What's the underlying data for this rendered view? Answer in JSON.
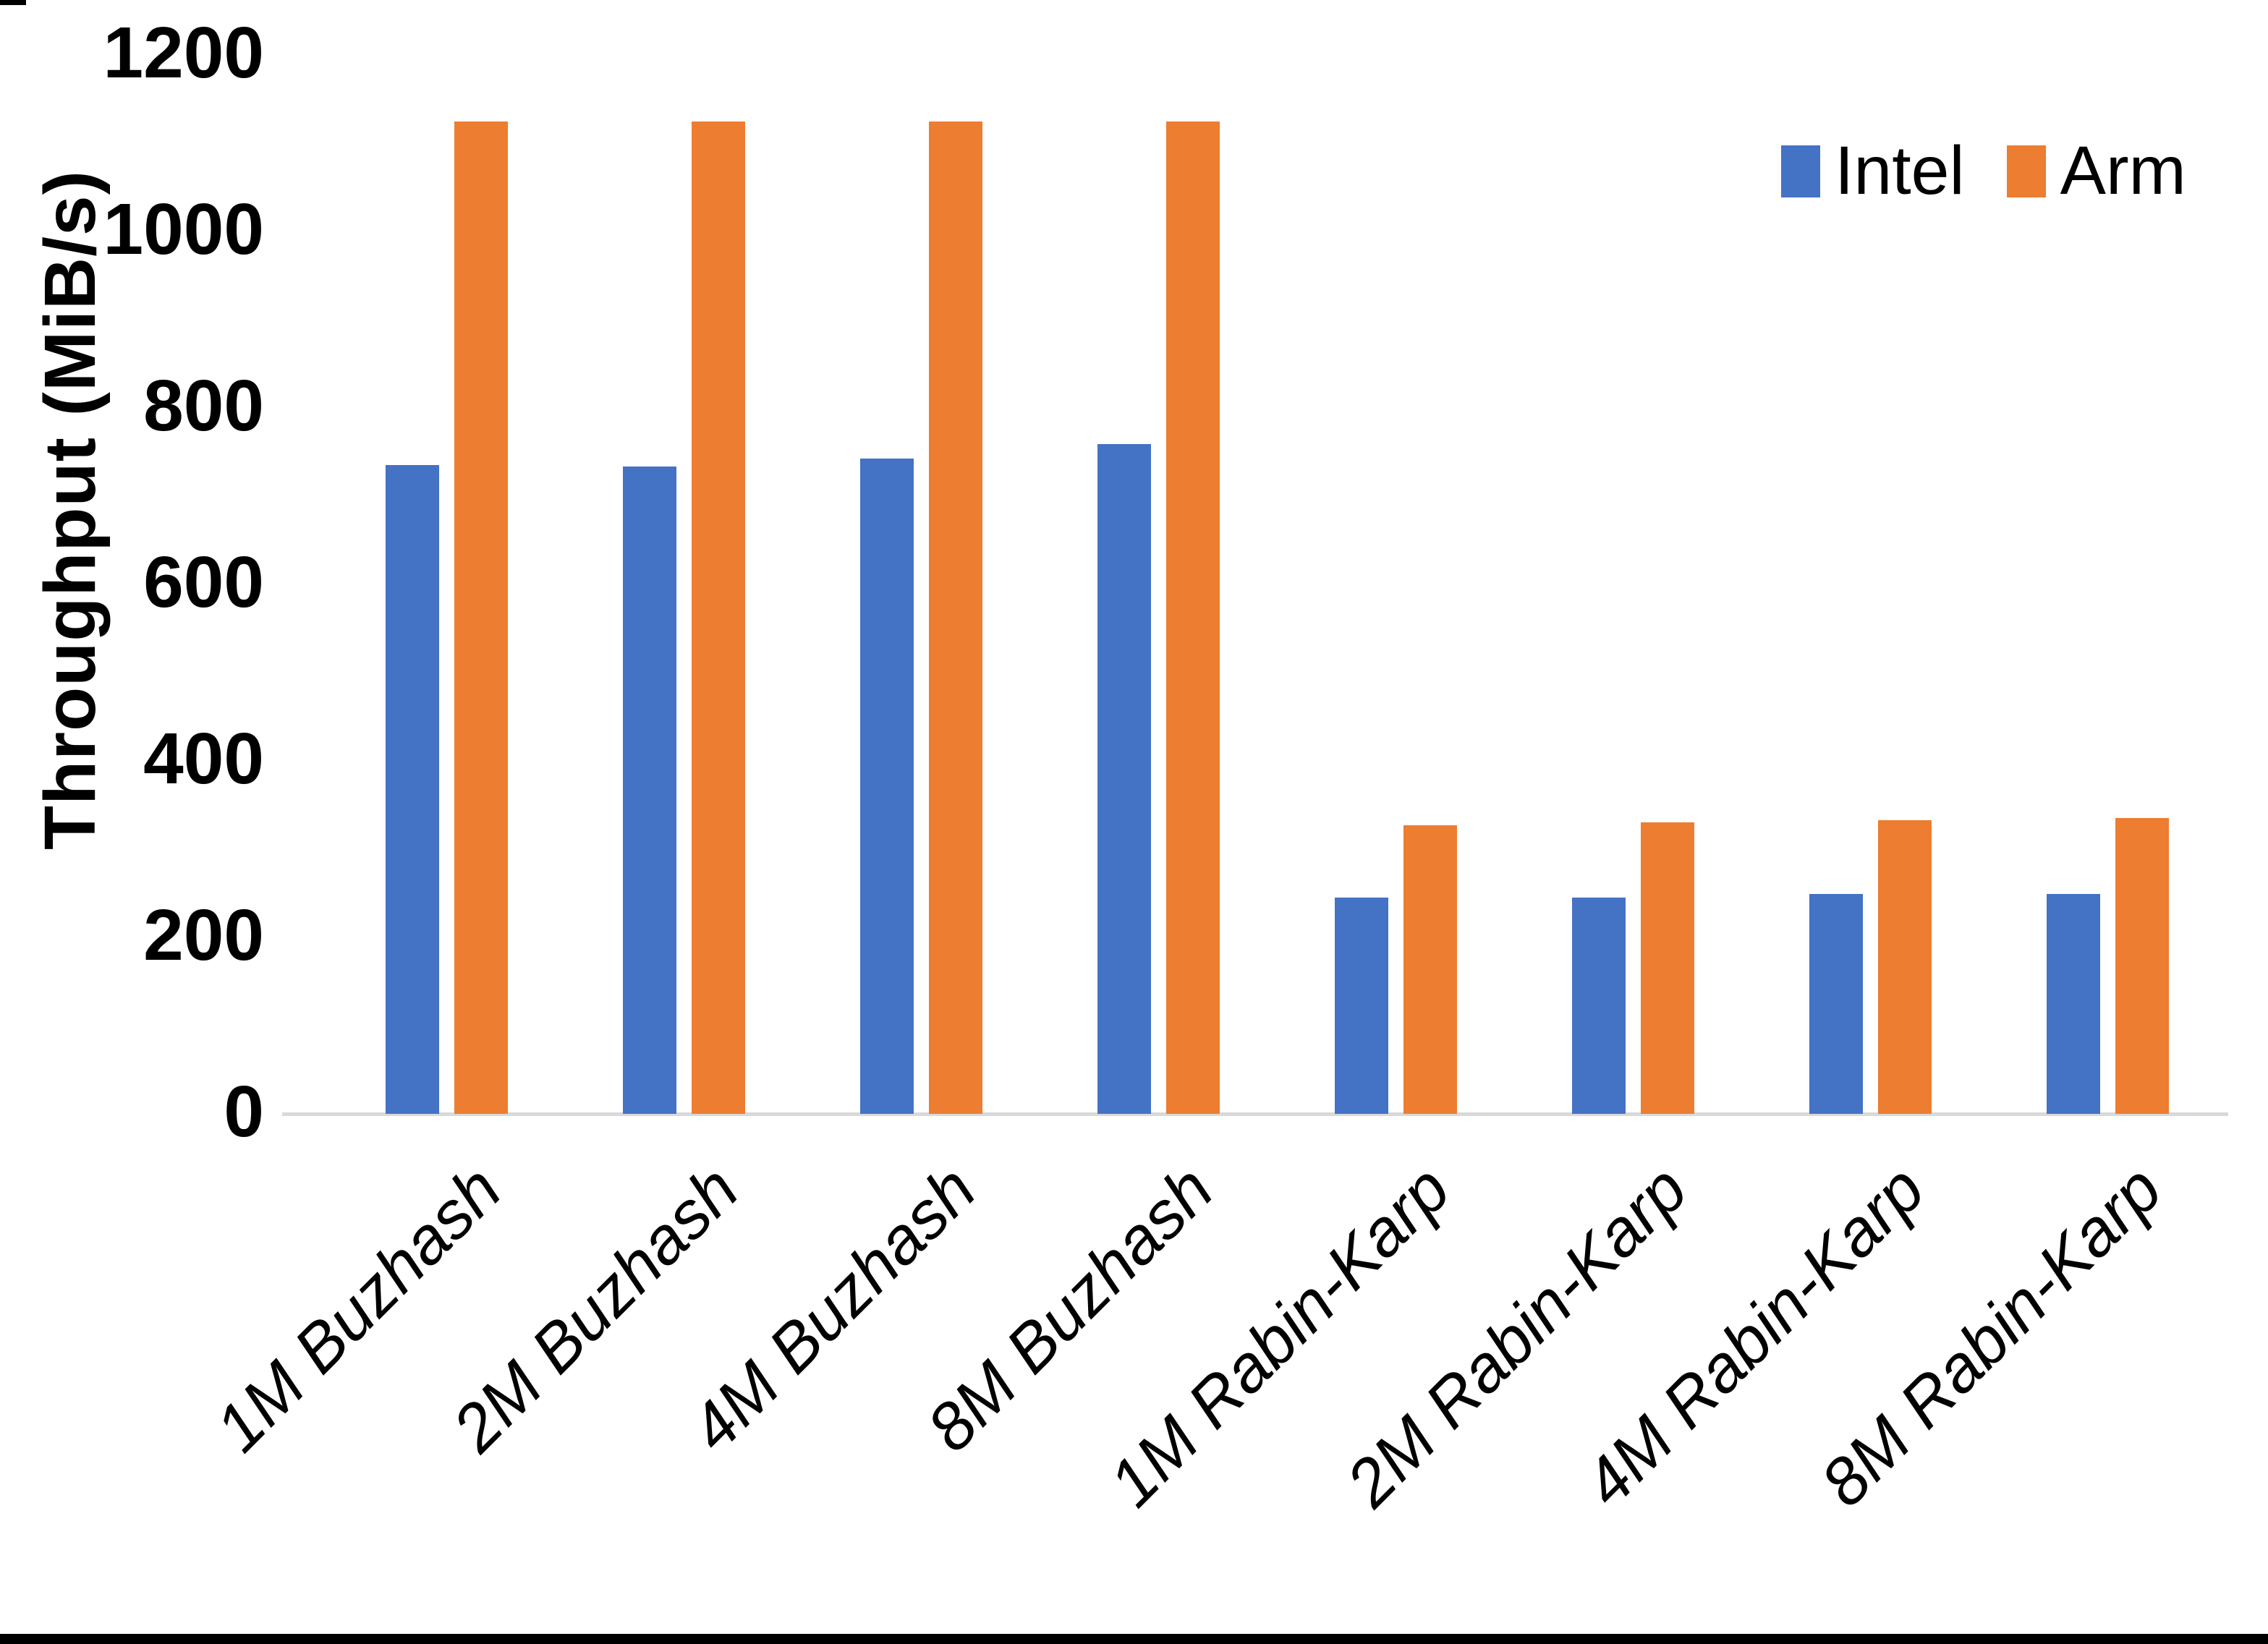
{
  "chart_data": {
    "type": "bar",
    "title": "",
    "xlabel": "",
    "ylabel": "Throughput (MiB/s)",
    "ylim": [
      0,
      1200
    ],
    "yticks": [
      0,
      200,
      400,
      600,
      800,
      1000,
      1200
    ],
    "grid": false,
    "legend_position": "top-right",
    "categories": [
      "1M Buzhash",
      "2M Buzhash",
      "4M Buzhash",
      "8M Buzhash",
      "1M Rabin-Karp",
      "2M Rabin-Karp",
      "4M Rabin-Karp",
      "8M Rabin-Karp"
    ],
    "series": [
      {
        "name": "Intel",
        "color": "#4472C4",
        "values": [
          735,
          734,
          743,
          759,
          245,
          245,
          249,
          249
        ]
      },
      {
        "name": "Arm",
        "color": "#ED7D31",
        "values": [
          1125,
          1125,
          1125,
          1125,
          327,
          330,
          333,
          335
        ]
      }
    ]
  },
  "colors": {
    "background": "#FFFFFF",
    "axis_line": "#D9D9D9",
    "text": "#000000",
    "bottom_border": "#000000"
  }
}
